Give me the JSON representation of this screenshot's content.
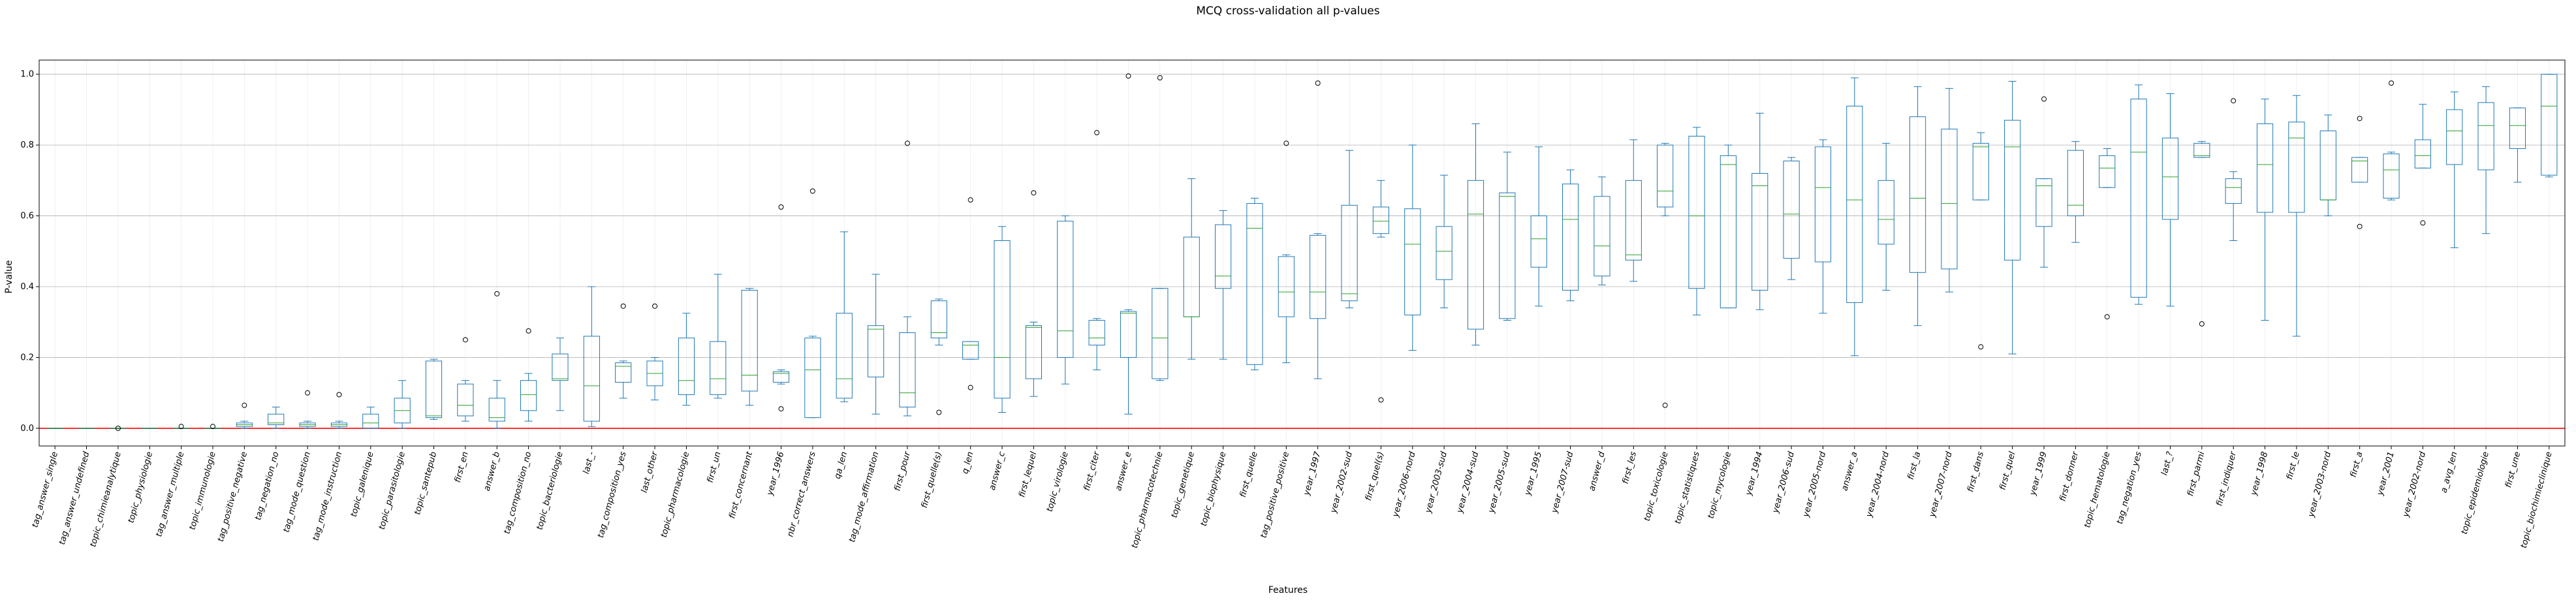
{
  "chart_data": {
    "type": "box",
    "title": "MCQ cross-validation all p-values",
    "xlabel": "Features",
    "ylabel": "P-value",
    "ylim": [
      -0.05,
      1.04
    ],
    "yticks": [
      "0.0",
      "0.2",
      "0.4",
      "0.6",
      "0.8",
      "1.0"
    ],
    "grid": "horizontal",
    "reference_line": {
      "y": 0.0,
      "color": "#ff0000"
    },
    "colors": {
      "box": "#1f77b4",
      "median": "#2ca02c",
      "flier": "#000000",
      "grid": "#b0b0b0"
    },
    "categories": [
      "tag_answer_single",
      "tag_answer_undefined",
      "topic_chimieanalytique",
      "topic_physiologie",
      "tag_answer_multiple",
      "topic_immunologie",
      "tag_positive_negative",
      "tag_negation_no",
      "tag_mode_question",
      "tag_mode_instruction",
      "topic_galenique",
      "topic_parasitologie",
      "topic_santepub",
      "first_en",
      "answer_b",
      "tag_composition_no",
      "topic_bacteriologie",
      "last_-",
      "tag_composition_yes",
      "last_other",
      "topic_pharmacologie",
      "first_un",
      "first_concernant",
      "year_1996",
      "nbr_correct_answers",
      "qa_len",
      "tag_mode_affirmation",
      "first_pour",
      "first_quelle(s)",
      "q_len",
      "answer_c",
      "first_lequel",
      "topic_virologie",
      "first_citer",
      "answer_e",
      "topic_pharmacotechnie",
      "topic_genetique",
      "topic_biophysique",
      "first_quelle",
      "tag_positive_positive",
      "year_1997",
      "year_2002-sud",
      "first_quel(s)",
      "year_2006-nord",
      "year_2003-sud",
      "year_2004-sud",
      "year_2005-sud",
      "year_1995",
      "year_2007-sud",
      "answer_d",
      "first_les",
      "topic_toxicologie",
      "topic_statistiques",
      "topic_mycologie",
      "year_1994",
      "year_2006-sud",
      "year_2005-nord",
      "answer_a",
      "year_2004-nord",
      "first_la",
      "year_2007-nord",
      "first_dans",
      "first_quel",
      "year_1999",
      "first_donner",
      "topic_hematologie",
      "tag_negation_yes",
      "last_?",
      "first_parmi",
      "first_indiquer",
      "year_1998",
      "first_le",
      "year_2003-nord",
      "first_a",
      "year_2001",
      "year_2002-nord",
      "a_avg_len",
      "topic_epidemiologie",
      "first_une",
      "topic_biochimieclinique"
    ],
    "boxes": [
      {
        "whislo": 0.0,
        "q1": 0.0,
        "med": 0.0,
        "q3": 0.0,
        "whishi": 0.0,
        "fliers": []
      },
      {
        "whislo": 0.0,
        "q1": 0.0,
        "med": 0.0,
        "q3": 0.0,
        "whishi": 0.0,
        "fliers": []
      },
      {
        "whislo": 0.0,
        "q1": 0.0,
        "med": 0.0,
        "q3": 0.0,
        "whishi": 0.0,
        "fliers": [
          0.0
        ]
      },
      {
        "whislo": 0.0,
        "q1": 0.0,
        "med": 0.0,
        "q3": 0.0,
        "whishi": 0.0,
        "fliers": []
      },
      {
        "whislo": 0.0,
        "q1": 0.0,
        "med": 0.0,
        "q3": 0.0,
        "whishi": 0.0,
        "fliers": [
          0.005
        ]
      },
      {
        "whislo": 0.0,
        "q1": 0.0,
        "med": 0.0,
        "q3": 0.0,
        "whishi": 0.0,
        "fliers": [
          0.005
        ]
      },
      {
        "whislo": 0.0,
        "q1": 0.005,
        "med": 0.01,
        "q3": 0.015,
        "whishi": 0.02,
        "fliers": [
          0.065
        ]
      },
      {
        "whislo": 0.0,
        "q1": 0.01,
        "med": 0.015,
        "q3": 0.04,
        "whishi": 0.06,
        "fliers": []
      },
      {
        "whislo": 0.0,
        "q1": 0.005,
        "med": 0.01,
        "q3": 0.015,
        "whishi": 0.02,
        "fliers": [
          0.1
        ]
      },
      {
        "whislo": 0.0,
        "q1": 0.005,
        "med": 0.01,
        "q3": 0.015,
        "whishi": 0.02,
        "fliers": [
          0.095
        ]
      },
      {
        "whislo": 0.0,
        "q1": 0.0,
        "med": 0.015,
        "q3": 0.04,
        "whishi": 0.06,
        "fliers": []
      },
      {
        "whislo": 0.0,
        "q1": 0.015,
        "med": 0.05,
        "q3": 0.085,
        "whishi": 0.135,
        "fliers": []
      },
      {
        "whislo": 0.025,
        "q1": 0.03,
        "med": 0.035,
        "q3": 0.19,
        "whishi": 0.195,
        "fliers": []
      },
      {
        "whislo": 0.02,
        "q1": 0.035,
        "med": 0.065,
        "q3": 0.125,
        "whishi": 0.135,
        "fliers": [
          0.25
        ]
      },
      {
        "whislo": 0.0,
        "q1": 0.02,
        "med": 0.03,
        "q3": 0.085,
        "whishi": 0.135,
        "fliers": [
          0.38
        ]
      },
      {
        "whislo": 0.02,
        "q1": 0.05,
        "med": 0.095,
        "q3": 0.135,
        "whishi": 0.155,
        "fliers": [
          0.275
        ]
      },
      {
        "whislo": 0.05,
        "q1": 0.135,
        "med": 0.14,
        "q3": 0.21,
        "whishi": 0.255,
        "fliers": []
      },
      {
        "whislo": 0.005,
        "q1": 0.02,
        "med": 0.12,
        "q3": 0.26,
        "whishi": 0.4,
        "fliers": []
      },
      {
        "whislo": 0.085,
        "q1": 0.13,
        "med": 0.175,
        "q3": 0.185,
        "whishi": 0.19,
        "fliers": [
          0.345
        ]
      },
      {
        "whislo": 0.08,
        "q1": 0.12,
        "med": 0.155,
        "q3": 0.19,
        "whishi": 0.2,
        "fliers": [
          0.345
        ]
      },
      {
        "whislo": 0.065,
        "q1": 0.095,
        "med": 0.135,
        "q3": 0.255,
        "whishi": 0.325,
        "fliers": []
      },
      {
        "whislo": 0.085,
        "q1": 0.095,
        "med": 0.14,
        "q3": 0.245,
        "whishi": 0.435,
        "fliers": []
      },
      {
        "whislo": 0.065,
        "q1": 0.105,
        "med": 0.15,
        "q3": 0.39,
        "whishi": 0.395,
        "fliers": []
      },
      {
        "whislo": 0.125,
        "q1": 0.13,
        "med": 0.155,
        "q3": 0.16,
        "whishi": 0.165,
        "fliers": [
          0.625,
          0.055
        ]
      },
      {
        "whislo": 0.03,
        "q1": 0.03,
        "med": 0.165,
        "q3": 0.255,
        "whishi": 0.26,
        "fliers": [
          0.67
        ]
      },
      {
        "whislo": 0.075,
        "q1": 0.085,
        "med": 0.14,
        "q3": 0.325,
        "whishi": 0.555,
        "fliers": []
      },
      {
        "whislo": 0.04,
        "q1": 0.145,
        "med": 0.28,
        "q3": 0.29,
        "whishi": 0.435,
        "fliers": []
      },
      {
        "whislo": 0.035,
        "q1": 0.06,
        "med": 0.1,
        "q3": 0.27,
        "whishi": 0.315,
        "fliers": [
          0.805
        ]
      },
      {
        "whislo": 0.235,
        "q1": 0.255,
        "med": 0.27,
        "q3": 0.36,
        "whishi": 0.365,
        "fliers": [
          0.045
        ]
      },
      {
        "whislo": 0.195,
        "q1": 0.195,
        "med": 0.235,
        "q3": 0.245,
        "whishi": 0.245,
        "fliers": [
          0.645,
          0.115
        ]
      },
      {
        "whislo": 0.045,
        "q1": 0.085,
        "med": 0.2,
        "q3": 0.53,
        "whishi": 0.57,
        "fliers": []
      },
      {
        "whislo": 0.09,
        "q1": 0.14,
        "med": 0.285,
        "q3": 0.29,
        "whishi": 0.3,
        "fliers": [
          0.665
        ]
      },
      {
        "whislo": 0.125,
        "q1": 0.2,
        "med": 0.275,
        "q3": 0.585,
        "whishi": 0.6,
        "fliers": []
      },
      {
        "whislo": 0.165,
        "q1": 0.235,
        "med": 0.255,
        "q3": 0.305,
        "whishi": 0.31,
        "fliers": [
          0.835
        ]
      },
      {
        "whislo": 0.04,
        "q1": 0.2,
        "med": 0.325,
        "q3": 0.33,
        "whishi": 0.335,
        "fliers": [
          0.995
        ]
      },
      {
        "whislo": 0.135,
        "q1": 0.14,
        "med": 0.255,
        "q3": 0.395,
        "whishi": 0.395,
        "fliers": [
          0.99
        ]
      },
      {
        "whislo": 0.195,
        "q1": 0.315,
        "med": 0.315,
        "q3": 0.54,
        "whishi": 0.705,
        "fliers": []
      },
      {
        "whislo": 0.195,
        "q1": 0.395,
        "med": 0.43,
        "q3": 0.575,
        "whishi": 0.615,
        "fliers": []
      },
      {
        "whislo": 0.165,
        "q1": 0.18,
        "med": 0.565,
        "q3": 0.635,
        "whishi": 0.65,
        "fliers": []
      },
      {
        "whislo": 0.185,
        "q1": 0.315,
        "med": 0.385,
        "q3": 0.485,
        "whishi": 0.49,
        "fliers": [
          0.805
        ]
      },
      {
        "whislo": 0.14,
        "q1": 0.31,
        "med": 0.385,
        "q3": 0.545,
        "whishi": 0.55,
        "fliers": [
          0.975
        ]
      },
      {
        "whislo": 0.34,
        "q1": 0.36,
        "med": 0.38,
        "q3": 0.63,
        "whishi": 0.785,
        "fliers": []
      },
      {
        "whislo": 0.54,
        "q1": 0.55,
        "med": 0.585,
        "q3": 0.625,
        "whishi": 0.7,
        "fliers": [
          0.08
        ]
      },
      {
        "whislo": 0.22,
        "q1": 0.32,
        "med": 0.52,
        "q3": 0.62,
        "whishi": 0.8,
        "fliers": []
      },
      {
        "whislo": 0.34,
        "q1": 0.42,
        "med": 0.5,
        "q3": 0.57,
        "whishi": 0.715,
        "fliers": []
      },
      {
        "whislo": 0.235,
        "q1": 0.28,
        "med": 0.605,
        "q3": 0.7,
        "whishi": 0.86,
        "fliers": []
      },
      {
        "whislo": 0.305,
        "q1": 0.31,
        "med": 0.655,
        "q3": 0.665,
        "whishi": 0.78,
        "fliers": []
      },
      {
        "whislo": 0.345,
        "q1": 0.455,
        "med": 0.535,
        "q3": 0.6,
        "whishi": 0.795,
        "fliers": []
      },
      {
        "whislo": 0.36,
        "q1": 0.39,
        "med": 0.59,
        "q3": 0.69,
        "whishi": 0.73,
        "fliers": []
      },
      {
        "whislo": 0.405,
        "q1": 0.43,
        "med": 0.515,
        "q3": 0.655,
        "whishi": 0.71,
        "fliers": []
      },
      {
        "whislo": 0.415,
        "q1": 0.475,
        "med": 0.49,
        "q3": 0.7,
        "whishi": 0.815,
        "fliers": []
      },
      {
        "whislo": 0.6,
        "q1": 0.625,
        "med": 0.67,
        "q3": 0.8,
        "whishi": 0.805,
        "fliers": [
          0.065
        ]
      },
      {
        "whislo": 0.32,
        "q1": 0.395,
        "med": 0.6,
        "q3": 0.825,
        "whishi": 0.85,
        "fliers": []
      },
      {
        "whislo": 0.34,
        "q1": 0.34,
        "med": 0.745,
        "q3": 0.77,
        "whishi": 0.8,
        "fliers": []
      },
      {
        "whislo": 0.335,
        "q1": 0.39,
        "med": 0.685,
        "q3": 0.72,
        "whishi": 0.89,
        "fliers": []
      },
      {
        "whislo": 0.42,
        "q1": 0.48,
        "med": 0.605,
        "q3": 0.755,
        "whishi": 0.765,
        "fliers": []
      },
      {
        "whislo": 0.325,
        "q1": 0.47,
        "med": 0.68,
        "q3": 0.795,
        "whishi": 0.815,
        "fliers": []
      },
      {
        "whislo": 0.205,
        "q1": 0.355,
        "med": 0.645,
        "q3": 0.91,
        "whishi": 0.99,
        "fliers": []
      },
      {
        "whislo": 0.39,
        "q1": 0.52,
        "med": 0.59,
        "q3": 0.7,
        "whishi": 0.805,
        "fliers": []
      },
      {
        "whislo": 0.29,
        "q1": 0.44,
        "med": 0.65,
        "q3": 0.88,
        "whishi": 0.965,
        "fliers": []
      },
      {
        "whislo": 0.385,
        "q1": 0.45,
        "med": 0.635,
        "q3": 0.845,
        "whishi": 0.96,
        "fliers": []
      },
      {
        "whislo": 0.645,
        "q1": 0.645,
        "med": 0.795,
        "q3": 0.805,
        "whishi": 0.835,
        "fliers": [
          0.23
        ]
      },
      {
        "whislo": 0.21,
        "q1": 0.475,
        "med": 0.795,
        "q3": 0.87,
        "whishi": 0.98,
        "fliers": []
      },
      {
        "whislo": 0.455,
        "q1": 0.57,
        "med": 0.685,
        "q3": 0.705,
        "whishi": 0.705,
        "fliers": [
          0.93
        ]
      },
      {
        "whislo": 0.525,
        "q1": 0.6,
        "med": 0.63,
        "q3": 0.785,
        "whishi": 0.81,
        "fliers": []
      },
      {
        "whislo": 0.68,
        "q1": 0.68,
        "med": 0.735,
        "q3": 0.77,
        "whishi": 0.79,
        "fliers": [
          0.315
        ]
      },
      {
        "whislo": 0.35,
        "q1": 0.37,
        "med": 0.78,
        "q3": 0.93,
        "whishi": 0.97,
        "fliers": []
      },
      {
        "whislo": 0.345,
        "q1": 0.59,
        "med": 0.71,
        "q3": 0.82,
        "whishi": 0.945,
        "fliers": []
      },
      {
        "whislo": 0.765,
        "q1": 0.765,
        "med": 0.77,
        "q3": 0.805,
        "whishi": 0.81,
        "fliers": [
          0.295
        ]
      },
      {
        "whislo": 0.53,
        "q1": 0.635,
        "med": 0.68,
        "q3": 0.705,
        "whishi": 0.725,
        "fliers": [
          0.925
        ]
      },
      {
        "whislo": 0.305,
        "q1": 0.61,
        "med": 0.745,
        "q3": 0.86,
        "whishi": 0.93,
        "fliers": []
      },
      {
        "whislo": 0.26,
        "q1": 0.61,
        "med": 0.82,
        "q3": 0.865,
        "whishi": 0.94,
        "fliers": []
      },
      {
        "whislo": 0.6,
        "q1": 0.645,
        "med": 0.645,
        "q3": 0.84,
        "whishi": 0.885,
        "fliers": []
      },
      {
        "whislo": 0.695,
        "q1": 0.695,
        "med": 0.755,
        "q3": 0.765,
        "whishi": 0.765,
        "fliers": [
          0.875,
          0.57
        ]
      },
      {
        "whislo": 0.645,
        "q1": 0.65,
        "med": 0.73,
        "q3": 0.775,
        "whishi": 0.78,
        "fliers": [
          0.975
        ]
      },
      {
        "whislo": 0.735,
        "q1": 0.735,
        "med": 0.77,
        "q3": 0.815,
        "whishi": 0.915,
        "fliers": [
          0.58
        ]
      },
      {
        "whislo": 0.51,
        "q1": 0.745,
        "med": 0.84,
        "q3": 0.9,
        "whishi": 0.95,
        "fliers": []
      },
      {
        "whislo": 0.55,
        "q1": 0.73,
        "med": 0.855,
        "q3": 0.92,
        "whishi": 0.965,
        "fliers": []
      },
      {
        "whislo": 0.695,
        "q1": 0.79,
        "med": 0.855,
        "q3": 0.905,
        "whishi": 0.905,
        "fliers": []
      },
      {
        "whislo": 0.71,
        "q1": 0.715,
        "med": 0.91,
        "q3": 1.0,
        "whishi": 1.0,
        "fliers": []
      }
    ]
  }
}
